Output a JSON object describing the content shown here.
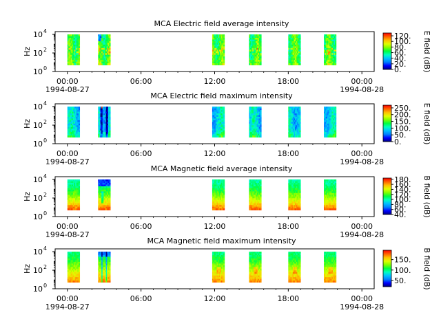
{
  "colors": {
    "colormap": [
      "#000080",
      "#0000ff",
      "#0080ff",
      "#00c0ff",
      "#00ffc0",
      "#00ff40",
      "#80ff00",
      "#e0ff00",
      "#ffc000",
      "#ff6000",
      "#ff0000"
    ],
    "axes": "#000000",
    "background": "#ffffff"
  },
  "chart_data": [
    {
      "type": "heatmap",
      "title": "MCA  Electric field average intensity",
      "ylabel": "Hz",
      "y_scale": "log",
      "ylim_exponent": [
        0,
        4.3
      ],
      "y_tick_base": "10",
      "y_tick_exponents": [
        "0",
        "2",
        "4"
      ],
      "xlim_hours": [
        -1,
        25
      ],
      "x_tick_labels": [
        "00:00",
        "06:00",
        "12:00",
        "18:00",
        "00:00"
      ],
      "x_date_labels": [
        "1994-08-27",
        "1994-08-28"
      ],
      "colorbar_label": "E field (dB)",
      "colorbar_range": [
        0,
        130
      ],
      "colorbar_ticks": [
        "0.",
        "20.",
        "40.",
        "60.",
        "80.",
        "100.",
        "120."
      ],
      "intervals_hours": [
        [
          0.0,
          1.0
        ],
        [
          2.5,
          3.5
        ],
        [
          11.8,
          12.8
        ],
        [
          14.8,
          15.8
        ],
        [
          18.0,
          19.0
        ],
        [
          20.9,
          21.9
        ]
      ],
      "noise_seed": 11
    },
    {
      "type": "heatmap",
      "title": "MCA  Electric field maximum intensity",
      "ylabel": "Hz",
      "y_scale": "log",
      "ylim_exponent": [
        0,
        4.3
      ],
      "y_tick_base": "10",
      "y_tick_exponents": [
        "0",
        "2",
        "4"
      ],
      "xlim_hours": [
        -1,
        25
      ],
      "x_tick_labels": [
        "00:00",
        "06:00",
        "12:00",
        "18:00",
        "00:00"
      ],
      "x_date_labels": [
        "1994-08-27",
        "1994-08-28"
      ],
      "colorbar_label": "E field (dB)",
      "colorbar_range": [
        0,
        270
      ],
      "colorbar_ticks": [
        "0.",
        "50.",
        "100.",
        "150.",
        "200.",
        "250."
      ],
      "intervals_hours": [
        [
          0.0,
          1.0
        ],
        [
          2.5,
          3.5
        ],
        [
          11.8,
          12.8
        ],
        [
          14.8,
          15.8
        ],
        [
          18.0,
          19.0
        ],
        [
          20.9,
          21.9
        ]
      ],
      "noise_seed": 23
    },
    {
      "type": "heatmap",
      "title": "MCA  Magnetic field average intensity",
      "ylabel": "Hz",
      "y_scale": "log",
      "ylim_exponent": [
        0,
        4.3
      ],
      "y_tick_base": "10",
      "y_tick_exponents": [
        "0",
        "2",
        "4"
      ],
      "xlim_hours": [
        -1,
        25
      ],
      "x_tick_labels": [
        "00:00",
        "06:00",
        "12:00",
        "18:00",
        "00:00"
      ],
      "x_date_labels": [
        "1994-08-27",
        "1994-08-28"
      ],
      "colorbar_label": "B field (dB)",
      "colorbar_range": [
        40,
        185
      ],
      "colorbar_ticks": [
        "40.",
        "60.",
        "80.",
        "100.",
        "120.",
        "140.",
        "160.",
        "180."
      ],
      "intervals_hours": [
        [
          0.0,
          1.0
        ],
        [
          2.5,
          3.5
        ],
        [
          11.8,
          12.8
        ],
        [
          14.8,
          15.8
        ],
        [
          18.0,
          19.0
        ],
        [
          20.9,
          21.9
        ]
      ],
      "noise_seed": 37
    },
    {
      "type": "heatmap",
      "title": "MCA  Magnetic field maximum intensity",
      "ylabel": "Hz",
      "y_scale": "log",
      "ylim_exponent": [
        0,
        4.3
      ],
      "y_tick_base": "10",
      "y_tick_exponents": [
        "0",
        "2",
        "4"
      ],
      "xlim_hours": [
        -1,
        25
      ],
      "x_tick_labels": [
        "00:00",
        "06:00",
        "12:00",
        "18:00",
        "00:00"
      ],
      "x_date_labels": [
        "1994-08-27",
        "1994-08-28"
      ],
      "colorbar_label": "B field (dB)",
      "colorbar_range": [
        20,
        195
      ],
      "colorbar_ticks": [
        "50.",
        "100.",
        "150."
      ],
      "intervals_hours": [
        [
          0.0,
          1.0
        ],
        [
          2.5,
          3.5
        ],
        [
          11.8,
          12.8
        ],
        [
          14.8,
          15.8
        ],
        [
          18.0,
          19.0
        ],
        [
          20.9,
          21.9
        ]
      ],
      "noise_seed": 53
    }
  ]
}
